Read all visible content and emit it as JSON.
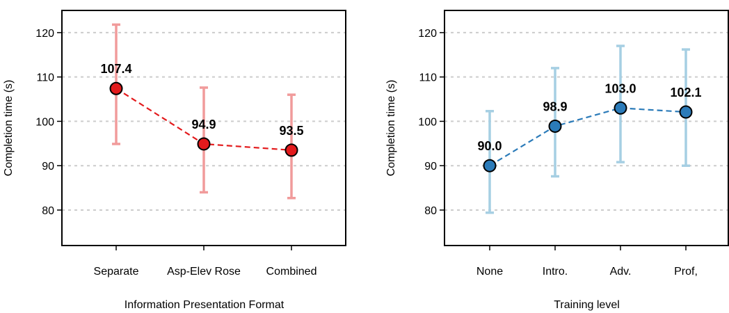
{
  "chart_data": [
    {
      "type": "line",
      "categories": [
        "Separate",
        "Asp-Elev Rose",
        "Combined"
      ],
      "values": [
        107.4,
        94.9,
        93.5
      ],
      "error_low": [
        94.9,
        84.0,
        82.7
      ],
      "error_high": [
        121.8,
        107.6,
        106.0
      ],
      "value_labels": [
        "107.4",
        "94.9",
        "93.5"
      ],
      "xlabel": "Information Presentation Format",
      "ylabel": "Completion time (s)",
      "ylim": [
        72,
        125
      ],
      "yticks": [
        80,
        90,
        100,
        110,
        120
      ],
      "grid": "horizontal dotted",
      "colors": {
        "point": "#e31a1c",
        "line": "#e31a1c",
        "error": "#f19b9b"
      }
    },
    {
      "type": "line",
      "categories": [
        "None",
        "Intro.",
        "Adv.",
        "Prof,"
      ],
      "values": [
        90.0,
        98.9,
        103.0,
        102.1
      ],
      "error_low": [
        79.4,
        87.6,
        90.8,
        90.0
      ],
      "error_high": [
        102.3,
        112.0,
        117.0,
        116.2
      ],
      "value_labels": [
        "90.0",
        "98.9",
        "103.0",
        "102.1"
      ],
      "xlabel": "Training level",
      "ylabel": "Completion time (s)",
      "ylim": [
        72,
        125
      ],
      "yticks": [
        80,
        90,
        100,
        110,
        120
      ],
      "grid": "horizontal dotted",
      "colors": {
        "point": "#2b7bb9",
        "line": "#2b7bb9",
        "error": "#a6cfe3"
      }
    }
  ]
}
